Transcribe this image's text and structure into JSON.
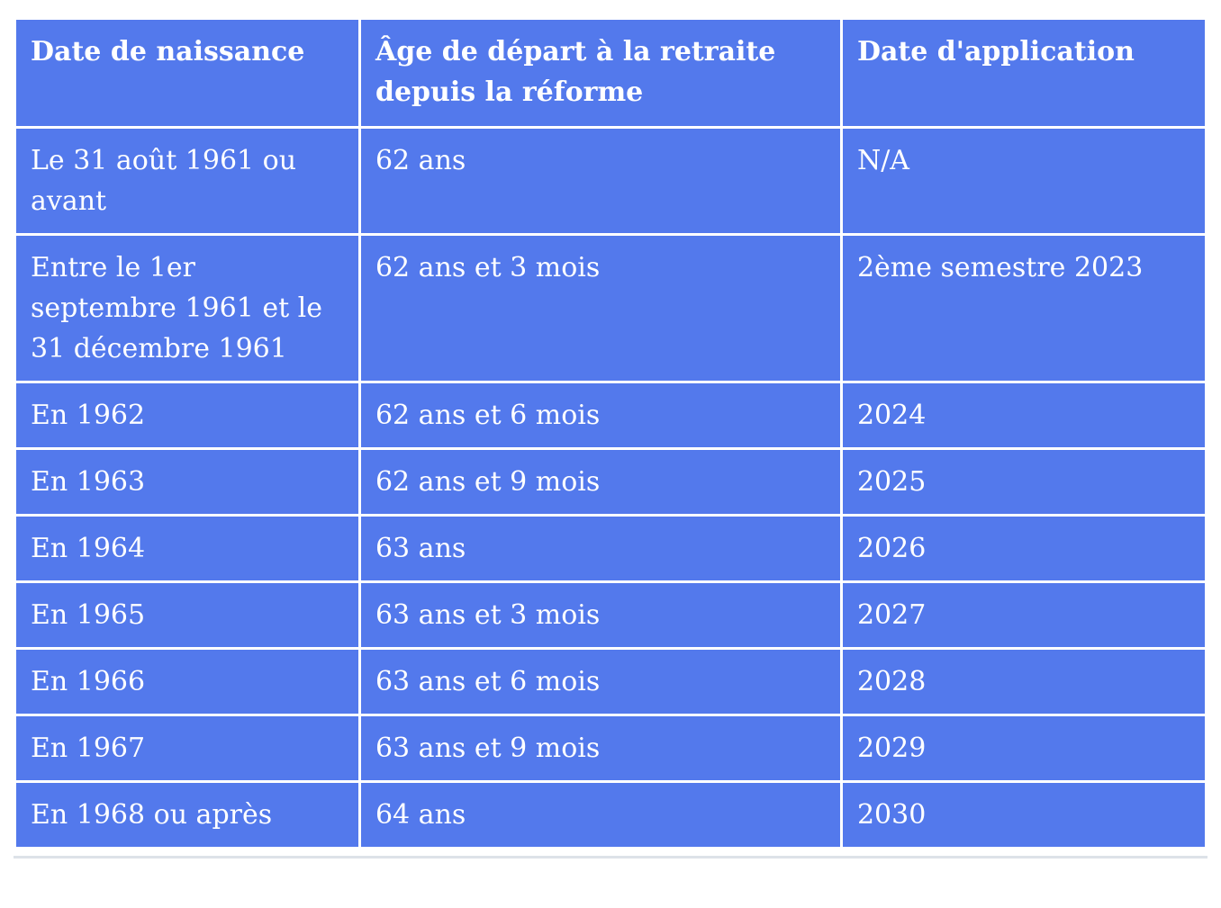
{
  "theme": {
    "cell_background": "#5379ec",
    "cell_border_color": "#ffffff",
    "text_color": "#ffffff",
    "bottom_rule_color": "#dde2e8",
    "page_background": "#ffffff"
  },
  "table": {
    "columns": [
      "Date de naissance",
      "Âge de départ à la retraite depuis la réforme",
      "Date d'application"
    ],
    "rows": [
      [
        "Le 31 août 1961 ou avant",
        "62 ans",
        "N/A"
      ],
      [
        "Entre le 1er septembre 1961 et le 31 décembre 1961",
        "62 ans et 3 mois",
        "2ème semestre 2023"
      ],
      [
        "En 1962",
        "62 ans et 6 mois",
        "2024"
      ],
      [
        "En 1963",
        "62 ans et 9 mois",
        "2025"
      ],
      [
        "En 1964",
        "63 ans",
        "2026"
      ],
      [
        "En 1965",
        "63 ans et 3 mois",
        "2027"
      ],
      [
        "En 1966",
        "63 ans et 6 mois",
        "2028"
      ],
      [
        "En 1967",
        "63 ans et 9 mois",
        "2029"
      ],
      [
        "En 1968 ou après",
        "64 ans",
        "2030"
      ]
    ]
  }
}
